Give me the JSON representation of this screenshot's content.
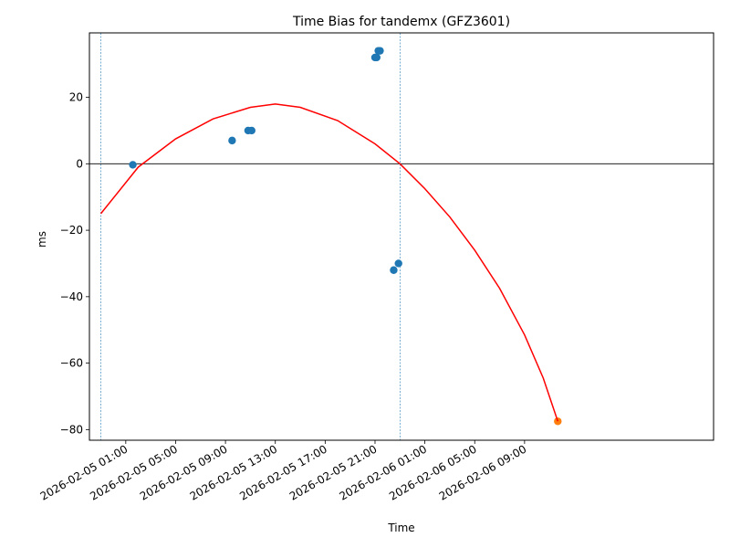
{
  "chart_data": {
    "type": "scatter",
    "title": "Time Bias for tandemx (GFZ3601)",
    "xlabel": "Time",
    "ylabel": "ms",
    "x_is_datetime": true,
    "xlim": [
      "2026-02-04T22:05",
      "2026-02-07T00:10"
    ],
    "ylim": [
      -83.2,
      39.4
    ],
    "xticks": [
      {
        "t": "2026-02-05T01:00",
        "label": "2026-02-05 01:00"
      },
      {
        "t": "2026-02-05T05:00",
        "label": "2026-02-05 05:00"
      },
      {
        "t": "2026-02-05T09:00",
        "label": "2026-02-05 09:00"
      },
      {
        "t": "2026-02-05T13:00",
        "label": "2026-02-05 13:00"
      },
      {
        "t": "2026-02-05T17:00",
        "label": "2026-02-05 17:00"
      },
      {
        "t": "2026-02-05T21:00",
        "label": "2026-02-05 21:00"
      },
      {
        "t": "2026-02-06T01:00",
        "label": "2026-02-06 01:00"
      },
      {
        "t": "2026-02-06T05:00",
        "label": "2026-02-06 05:00"
      },
      {
        "t": "2026-02-06T09:00",
        "label": "2026-02-06 09:00"
      }
    ],
    "yticks": [
      20,
      0,
      -20,
      -40,
      -60,
      -80
    ],
    "hline_y": 0,
    "vlines": [
      "2026-02-04T23:00",
      "2026-02-05T23:00"
    ],
    "series": [
      {
        "kind": "points",
        "color": "#1f77b4",
        "points": [
          {
            "t": "2026-02-05T01:34",
            "y": -0.3
          },
          {
            "t": "2026-02-05T09:32",
            "y": 7.0
          },
          {
            "t": "2026-02-05T10:49",
            "y": 10.0
          },
          {
            "t": "2026-02-05T11:06",
            "y": 10.0
          },
          {
            "t": "2026-02-05T21:00",
            "y": 32.0
          },
          {
            "t": "2026-02-05T21:08",
            "y": 32.0
          },
          {
            "t": "2026-02-05T21:16",
            "y": 34.0
          },
          {
            "t": "2026-02-05T21:24",
            "y": 34.0
          },
          {
            "t": "2026-02-05T22:30",
            "y": -32.0
          },
          {
            "t": "2026-02-05T22:53",
            "y": -30.0
          }
        ]
      },
      {
        "kind": "points",
        "color": "#ff7f0e",
        "points": [
          {
            "t": "2026-02-06T11:40",
            "y": -77.5
          }
        ]
      },
      {
        "kind": "curve",
        "color": "#ff0000",
        "points": [
          {
            "t": "2026-02-04T23:00",
            "y": -15.0
          },
          {
            "t": "2026-02-05T02:00",
            "y": -1.0
          },
          {
            "t": "2026-02-05T05:00",
            "y": 7.5
          },
          {
            "t": "2026-02-05T08:00",
            "y": 13.5
          },
          {
            "t": "2026-02-05T11:00",
            "y": 17.0
          },
          {
            "t": "2026-02-05T13:00",
            "y": 18.0
          },
          {
            "t": "2026-02-05T15:00",
            "y": 17.0
          },
          {
            "t": "2026-02-05T18:00",
            "y": 13.0
          },
          {
            "t": "2026-02-05T21:00",
            "y": 6.0
          },
          {
            "t": "2026-02-05T23:00",
            "y": 0.0
          },
          {
            "t": "2026-02-06T01:00",
            "y": -7.5
          },
          {
            "t": "2026-02-06T03:00",
            "y": -16.0
          },
          {
            "t": "2026-02-06T05:00",
            "y": -26.0
          },
          {
            "t": "2026-02-06T07:00",
            "y": -37.5
          },
          {
            "t": "2026-02-06T09:00",
            "y": -51.5
          },
          {
            "t": "2026-02-06T10:30",
            "y": -64.5
          },
          {
            "t": "2026-02-06T11:40",
            "y": -77.5
          }
        ]
      }
    ]
  }
}
